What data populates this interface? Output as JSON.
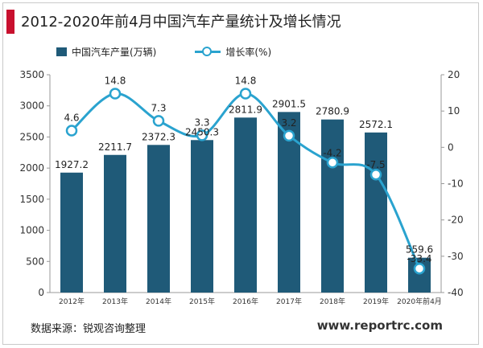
{
  "title": "2012-2020年前4月中国汽车产量统计及增长情况",
  "source": "数据来源：锐观咨询整理",
  "website": "www.reportrc.com",
  "colors": {
    "bar": "#1f5a78",
    "line": "#2aa3cf",
    "accent": "#c8102e"
  },
  "chart_data": {
    "type": "bar",
    "categories": [
      "2012年",
      "2013年",
      "2014年",
      "2015年",
      "2016年",
      "2017年",
      "2018年",
      "2019年",
      "2020年前4月"
    ],
    "series": [
      {
        "name": "中国汽车产量(万辆)",
        "type": "bar",
        "axis": "left",
        "values": [
          1927.2,
          2211.7,
          2372.3,
          2450.3,
          2811.9,
          2901.5,
          2780.9,
          2572.1,
          559.6
        ],
        "labels": [
          "1927.2",
          "2211.7",
          "2372.3",
          "2450.3",
          "2811.9",
          "2901.5",
          "2780.9",
          "2572.1",
          "559.6"
        ]
      },
      {
        "name": "增长率(%)",
        "type": "line",
        "axis": "right",
        "values": [
          4.6,
          14.8,
          7.3,
          3.3,
          14.8,
          3.2,
          -4.2,
          -7.5,
          -33.4
        ],
        "labels": [
          "4.6",
          "14.8",
          "7.3",
          "3.3",
          "14.8",
          "3.2",
          "-4.2",
          "-7.5",
          "-33.4"
        ]
      }
    ],
    "y_left": {
      "min": 0,
      "max": 3500,
      "ticks": [
        "0",
        "500",
        "1000",
        "1500",
        "2000",
        "2500",
        "3000",
        "3500"
      ]
    },
    "y_right": {
      "min": -40,
      "max": 20,
      "ticks": [
        "-40",
        "-30",
        "-20",
        "-10",
        "0",
        "10",
        "20"
      ]
    },
    "legend_position": "top-left",
    "grid": false
  }
}
